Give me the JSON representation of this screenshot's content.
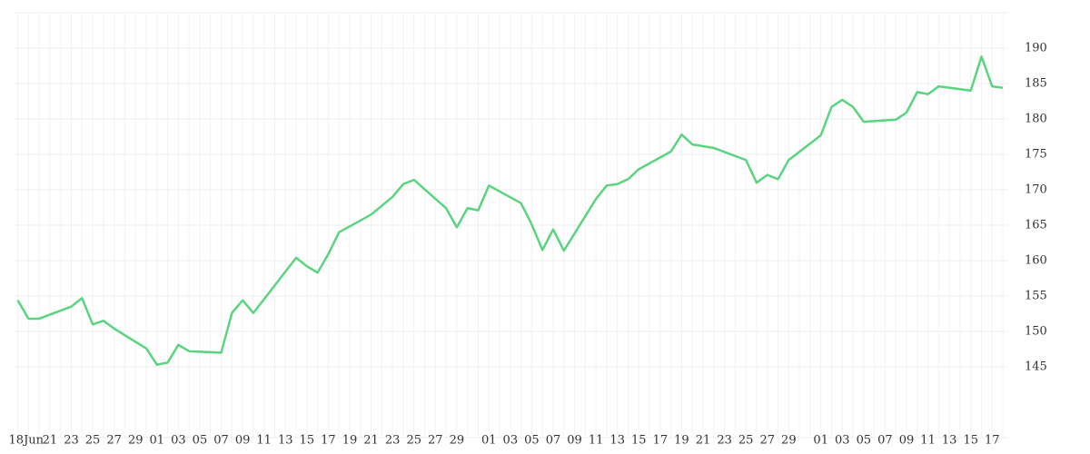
{
  "chart_data": {
    "type": "line",
    "x": [
      0,
      1,
      2,
      5,
      6,
      7,
      8,
      9,
      12,
      13,
      14,
      15,
      16,
      19,
      20,
      21,
      22,
      26,
      27,
      28,
      29,
      30,
      33,
      35,
      36,
      37,
      40,
      41,
      42,
      43,
      44,
      47,
      48,
      49,
      50,
      51,
      54,
      55,
      56,
      57,
      58,
      61,
      62,
      63,
      65,
      68,
      69,
      70,
      71,
      72,
      75,
      76,
      77,
      78,
      79,
      82,
      83,
      84,
      85,
      86,
      89,
      90,
      91,
      92
    ],
    "series": [
      {
        "color": "#5ad47f",
        "values": [
          154.4,
          151.8,
          151.8,
          153.5,
          154.7,
          151.0,
          151.5,
          150.4,
          147.6,
          145.3,
          145.6,
          148.1,
          147.2,
          147.0,
          152.6,
          154.4,
          152.6,
          160.4,
          159.2,
          158.3,
          160.9,
          164.0,
          166.5,
          169.0,
          170.8,
          171.4,
          167.4,
          164.7,
          167.4,
          167.1,
          170.6,
          168.1,
          165.1,
          161.5,
          164.4,
          161.4,
          168.7,
          170.6,
          170.8,
          171.5,
          172.9,
          175.4,
          177.8,
          176.4,
          175.9,
          174.2,
          171.0,
          172.1,
          171.5,
          174.2,
          177.7,
          181.7,
          182.7,
          181.7,
          179.6,
          179.9,
          180.9,
          183.8,
          183.5,
          184.6,
          184.0,
          188.8,
          184.6,
          184.4
        ]
      }
    ],
    "xlim": [
      -0.3,
      92.5
    ],
    "xticks": [
      {
        "value": 0,
        "label": "18Jun"
      },
      {
        "value": 3,
        "label": "21"
      },
      {
        "value": 5,
        "label": "23"
      },
      {
        "value": 7,
        "label": "25"
      },
      {
        "value": 9,
        "label": "27"
      },
      {
        "value": 11,
        "label": "29"
      },
      {
        "value": 13,
        "label": "01"
      },
      {
        "value": 15,
        "label": "03"
      },
      {
        "value": 17,
        "label": "05"
      },
      {
        "value": 19,
        "label": "07"
      },
      {
        "value": 21,
        "label": "09"
      },
      {
        "value": 23,
        "label": "11"
      },
      {
        "value": 25,
        "label": "13"
      },
      {
        "value": 27,
        "label": "15"
      },
      {
        "value": 29,
        "label": "17"
      },
      {
        "value": 31,
        "label": "19"
      },
      {
        "value": 33,
        "label": "21"
      },
      {
        "value": 35,
        "label": "23"
      },
      {
        "value": 37,
        "label": "25"
      },
      {
        "value": 39,
        "label": "27"
      },
      {
        "value": 41,
        "label": "29"
      },
      {
        "value": 44,
        "label": "01"
      },
      {
        "value": 46,
        "label": "03"
      },
      {
        "value": 48,
        "label": "05"
      },
      {
        "value": 50,
        "label": "07"
      },
      {
        "value": 52,
        "label": "09"
      },
      {
        "value": 54,
        "label": "11"
      },
      {
        "value": 56,
        "label": "13"
      },
      {
        "value": 58,
        "label": "15"
      },
      {
        "value": 60,
        "label": "17"
      },
      {
        "value": 62,
        "label": "19"
      },
      {
        "value": 64,
        "label": "21"
      },
      {
        "value": 66,
        "label": "23"
      },
      {
        "value": 68,
        "label": "25"
      },
      {
        "value": 70,
        "label": "27"
      },
      {
        "value": 72,
        "label": "29"
      },
      {
        "value": 75,
        "label": "01"
      },
      {
        "value": 77,
        "label": "03"
      },
      {
        "value": 79,
        "label": "05"
      },
      {
        "value": 81,
        "label": "07"
      },
      {
        "value": 83,
        "label": "09"
      },
      {
        "value": 85,
        "label": "11"
      },
      {
        "value": 87,
        "label": "13"
      },
      {
        "value": 89,
        "label": "15"
      },
      {
        "value": 91,
        "label": "17"
      }
    ],
    "ylim": [
      135,
      195
    ],
    "yticks": [
      145,
      150,
      155,
      160,
      165,
      170,
      175,
      180,
      185,
      190
    ],
    "grid": true
  }
}
